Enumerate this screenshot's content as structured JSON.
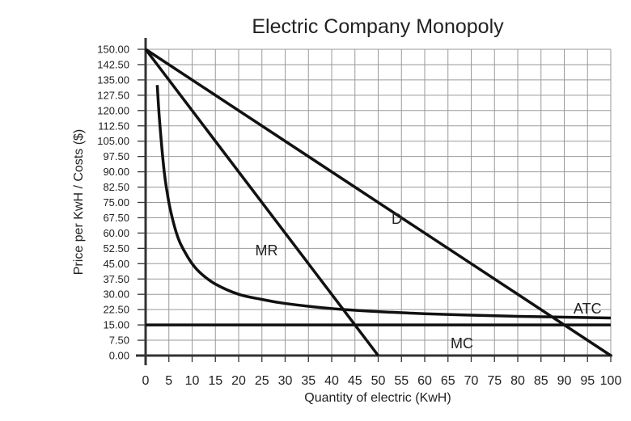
{
  "chart_data": {
    "type": "line",
    "title": "Electric Company Monopoly",
    "xlabel": "Quantity of electric (KwH)",
    "ylabel": "Price per KwH / Costs ($)",
    "xlim": [
      0,
      100
    ],
    "ylim": [
      0,
      150
    ],
    "grid": true,
    "x_ticks": [
      "0",
      "5",
      "10",
      "15",
      "20",
      "25",
      "30",
      "35",
      "40",
      "45",
      "50",
      "55",
      "60",
      "65",
      "70",
      "75",
      "80",
      "85",
      "90",
      "95",
      "100"
    ],
    "y_ticks": [
      "0.00",
      "7.50",
      "15.00",
      "22.50",
      "30.00",
      "37.50",
      "45.00",
      "52.50",
      "60.00",
      "67.50",
      "75.00",
      "82.50",
      "90.00",
      "97.50",
      "105.00",
      "112.50",
      "120.00",
      "127.50",
      "135.00",
      "142.50",
      "150.00"
    ],
    "series": [
      {
        "name": "D",
        "x": [
          0,
          100
        ],
        "y": [
          150,
          0
        ]
      },
      {
        "name": "MR",
        "x": [
          0,
          50
        ],
        "y": [
          150,
          0
        ]
      },
      {
        "name": "MC",
        "x": [
          0,
          100
        ],
        "y": [
          15,
          15
        ]
      },
      {
        "name": "ATC",
        "x": [
          2.5,
          3,
          4,
          5,
          6,
          7,
          8,
          10,
          12,
          15,
          20,
          25,
          30,
          40,
          50,
          60,
          70,
          80,
          90,
          100
        ],
        "y": [
          132.5,
          115,
          90,
          75,
          65,
          57.5,
          52.5,
          45,
          40,
          35,
          30,
          27.5,
          25.5,
          23,
          21.5,
          20.5,
          19.8,
          19.2,
          18.8,
          18.4
        ]
      }
    ],
    "labels": {
      "D": "D",
      "MR": "MR",
      "MC": "MC",
      "ATC": "ATC"
    }
  }
}
